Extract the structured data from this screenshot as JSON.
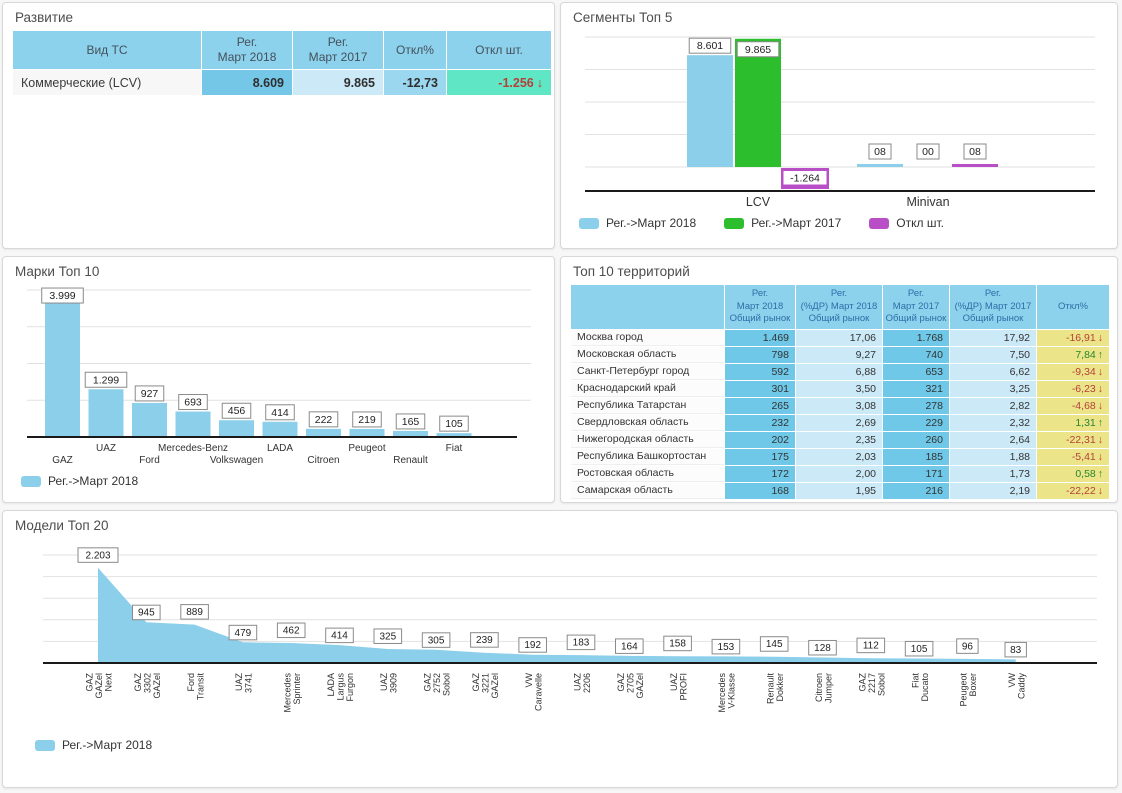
{
  "glyphs": {
    "arrow_down": "↓",
    "arrow_up": "↑"
  },
  "colors": {
    "header_blue": "#8dd2ec",
    "cell_blue": "#6fc8e7",
    "cell_light_blue": "#cbe9f7",
    "cell_teal": "#5fe6c5",
    "cell_yellow": "#ece489",
    "positive_green": "#27862f",
    "negative_red": "#b5413a",
    "bar_blue": "#8ccfea",
    "bar_green": "#2dbe2d",
    "bar_purple": "#b94fc6"
  },
  "panels": {
    "development": {
      "title": "Развитие",
      "headers": [
        "Вид ТС",
        "Рег.\nМарт 2018",
        "Рег.\nМарт 2017",
        "Откл%",
        "Откл шт."
      ],
      "row": {
        "label": "Коммерческие (LCV)",
        "reg_2018": "8.609",
        "reg_2017": "9.865",
        "otkl_pct": "-12,73",
        "otkl_sht": "-1.256",
        "otkl_dir": "down"
      }
    },
    "segments": {
      "title": "Сегменты Топ 5"
    },
    "brands": {
      "title": "Марки Топ 10"
    },
    "territories": {
      "title": "Топ 10 территорий",
      "headers": [
        "",
        "Рег.\nМарт 2018\nОбщий рынок",
        "Рег.\n(%ДР) Март 2018\nОбщий рынок",
        "Рег.\nМарт 2017\nОбщий рынок",
        "Рег.\n(%ДР) Март 2017\nОбщий рынок",
        "Откл%"
      ],
      "rows": [
        {
          "name": "Москва город",
          "reg_2018": "1.469",
          "share_2018": "17,06",
          "reg_2017": "1.768",
          "share_2017": "17,92",
          "otkl": "-16,91",
          "dir": "down"
        },
        {
          "name": "Московская область",
          "reg_2018": "798",
          "share_2018": "9,27",
          "reg_2017": "740",
          "share_2017": "7,50",
          "otkl": "7,84",
          "dir": "up"
        },
        {
          "name": "Санкт-Петербург город",
          "reg_2018": "592",
          "share_2018": "6,88",
          "reg_2017": "653",
          "share_2017": "6,62",
          "otkl": "-9,34",
          "dir": "down"
        },
        {
          "name": "Краснодарский край",
          "reg_2018": "301",
          "share_2018": "3,50",
          "reg_2017": "321",
          "share_2017": "3,25",
          "otkl": "-6,23",
          "dir": "down"
        },
        {
          "name": "Республика Татарстан",
          "reg_2018": "265",
          "share_2018": "3,08",
          "reg_2017": "278",
          "share_2017": "2,82",
          "otkl": "-4,68",
          "dir": "down"
        },
        {
          "name": "Свердловская область",
          "reg_2018": "232",
          "share_2018": "2,69",
          "reg_2017": "229",
          "share_2017": "2,32",
          "otkl": "1,31",
          "dir": "up"
        },
        {
          "name": "Нижегородская область",
          "reg_2018": "202",
          "share_2018": "2,35",
          "reg_2017": "260",
          "share_2017": "2,64",
          "otkl": "-22,31",
          "dir": "down"
        },
        {
          "name": "Республика Башкортостан",
          "reg_2018": "175",
          "share_2018": "2,03",
          "reg_2017": "185",
          "share_2017": "1,88",
          "otkl": "-5,41",
          "dir": "down"
        },
        {
          "name": "Ростовская область",
          "reg_2018": "172",
          "share_2018": "2,00",
          "reg_2017": "171",
          "share_2017": "1,73",
          "otkl": "0,58",
          "dir": "up"
        },
        {
          "name": "Самарская область",
          "reg_2018": "168",
          "share_2018": "1,95",
          "reg_2017": "216",
          "share_2017": "2,19",
          "otkl": "-22,22",
          "dir": "down"
        }
      ]
    },
    "models": {
      "title": "Модели Топ 20"
    }
  },
  "chart_data": [
    {
      "id": "segments",
      "type": "bar",
      "title": "Сегменты Топ 5",
      "categories": [
        "LCV",
        "Minivan"
      ],
      "series": [
        {
          "name": "Рег.->Март 2018",
          "color": "#8ccfea",
          "values": [
            8601,
            8
          ],
          "labels": [
            "8.601",
            "08"
          ]
        },
        {
          "name": "Рег.->Март 2017",
          "color": "#2dbe2d",
          "values": [
            9865,
            0
          ],
          "labels": [
            "9.865",
            "00"
          ]
        },
        {
          "name": "Откл шт.",
          "color": "#b94fc6",
          "values": [
            -1264,
            8
          ],
          "labels": [
            "-1.264",
            "08"
          ]
        }
      ],
      "ylim": [
        -1500,
        10000
      ],
      "grid": true,
      "legend_position": "bottom"
    },
    {
      "id": "brands",
      "type": "bar",
      "title": "Марки Топ 10",
      "categories": [
        "GAZ",
        "UAZ",
        "Ford",
        "Mercedes-Benz",
        "Volkswagen",
        "LADA",
        "Citroen",
        "Peugeot",
        "Renault",
        "Fiat"
      ],
      "series": [
        {
          "name": "Рег.->Март 2018",
          "color": "#8ccfea",
          "values": [
            3999,
            1299,
            927,
            693,
            456,
            414,
            222,
            219,
            165,
            105
          ],
          "labels": [
            "3.999",
            "1.299",
            "927",
            "693",
            "456",
            "414",
            "222",
            "219",
            "165",
            "105"
          ]
        }
      ],
      "ylim": [
        0,
        4000
      ],
      "grid": true,
      "legend_position": "bottom"
    },
    {
      "id": "models",
      "type": "area",
      "title": "Модели Топ 20",
      "categories": [
        "GAZ\nGAZel\nNext",
        "GAZ\n3302\nGAZel",
        "Ford\nTransit",
        "UAZ\n3741",
        "Mercedes\nSprinter",
        "LADA\nLargus\nFurgon",
        "UAZ\n3909",
        "GAZ\n2752\nSobol",
        "GAZ\n3221\nGAZel",
        "VW\nCaravelle",
        "UAZ\n2206",
        "GAZ\n2705\nGAZel",
        "UAZ\nPROFI",
        "Mercedes\nV-Klasse",
        "Renault\nDokker",
        "Citroen\nJumper",
        "GAZ\n2217\nSobol",
        "Fiat\nDucato",
        "Peugeot\nBoxer",
        "VW\nCaddy"
      ],
      "series": [
        {
          "name": "Рег.->Март 2018",
          "color": "#8ccfea",
          "values": [
            2203,
            945,
            889,
            479,
            462,
            414,
            325,
            305,
            239,
            192,
            183,
            164,
            158,
            153,
            145,
            128,
            112,
            105,
            96,
            83
          ],
          "labels": [
            "2.203",
            "945",
            "889",
            "479",
            "462",
            "414",
            "325",
            "305",
            "239",
            "192",
            "183",
            "164",
            "158",
            "153",
            "145",
            "128",
            "112",
            "105",
            "96",
            "83"
          ]
        }
      ],
      "ylim": [
        0,
        2500
      ],
      "grid": true,
      "legend_position": "bottom"
    }
  ]
}
